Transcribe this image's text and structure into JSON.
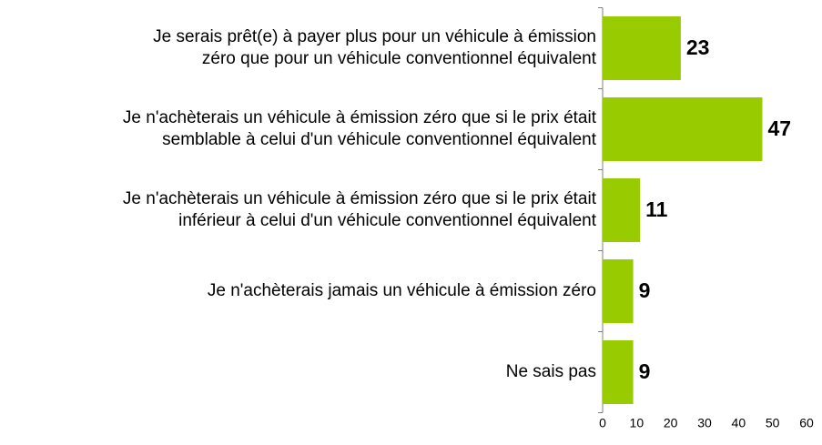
{
  "chart_data": {
    "type": "bar",
    "orientation": "horizontal",
    "categories": [
      [
        "Je serais prêt(e) à payer plus pour un véhicule à émission",
        "zéro que pour un véhicule conventionnel équivalent"
      ],
      [
        "Je n'achèterais un véhicule à émission zéro que si le prix était",
        "semblable à celui d'un véhicule conventionnel équivalent"
      ],
      [
        "Je n'achèterais un véhicule à émission zéro que si le prix était",
        "inférieur à celui d'un véhicule conventionnel équivalent"
      ],
      [
        "Je n'achèterais jamais un véhicule à émission zéro"
      ],
      [
        "Ne sais pas"
      ]
    ],
    "values": [
      23,
      47,
      11,
      9,
      9
    ],
    "color": "#99cc00",
    "xlim": [
      0,
      60
    ],
    "xticks": [
      0,
      10,
      20,
      30,
      40,
      50,
      60
    ]
  }
}
